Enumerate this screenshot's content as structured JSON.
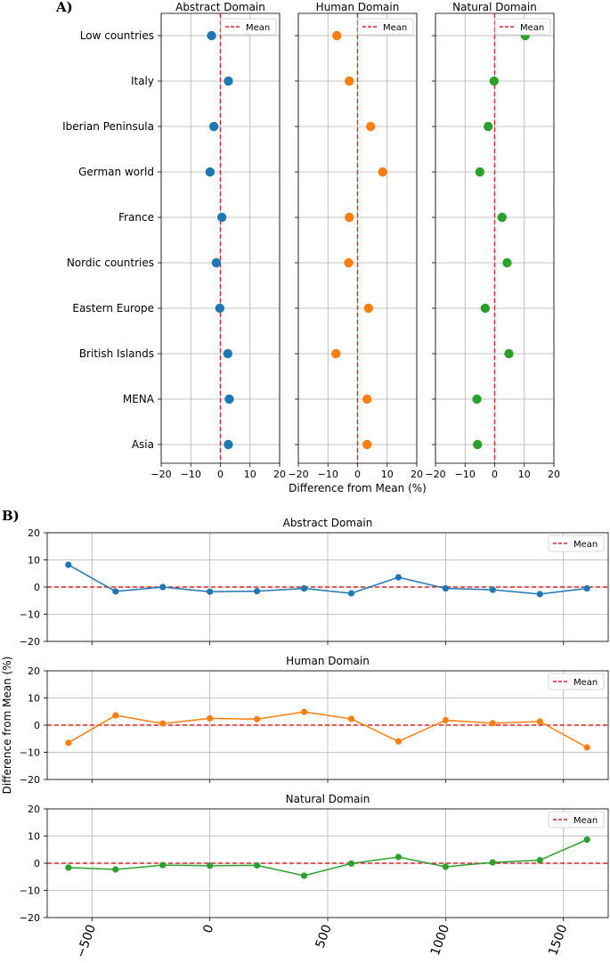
{
  "panel_labels": [
    "A)",
    "B)"
  ],
  "chart_data": [
    {
      "type": "scatter",
      "panel": "A)",
      "title": "Abstract Domain",
      "categories": [
        "Low countries",
        "Italy",
        "Iberian Peninsula",
        "German world",
        "France",
        "Nordic countries",
        "Eastern Europe",
        "British Islands",
        "MENA",
        "Asia"
      ],
      "values": [
        -3.0,
        2.7,
        -2.2,
        -3.5,
        0.5,
        -1.4,
        -0.2,
        2.5,
        3.0,
        2.7
      ],
      "color": "#1f77b4",
      "xlim": [
        -20,
        20
      ],
      "xticks": [
        "−20",
        "−10",
        "0",
        "10",
        "20"
      ],
      "xticks_values": [
        -20,
        -10,
        0,
        10,
        20
      ],
      "xlabel": "",
      "mean_line": 0,
      "legend": "Mean"
    },
    {
      "type": "scatter",
      "panel": "A)",
      "title": "Human Domain",
      "categories": [
        "Low countries",
        "Italy",
        "Iberian Peninsula",
        "German world",
        "France",
        "Nordic countries",
        "Eastern Europe",
        "British Islands",
        "MENA",
        "Asia"
      ],
      "values": [
        -7.0,
        -2.8,
        4.4,
        8.5,
        -2.8,
        -3.0,
        3.7,
        -7.3,
        3.2,
        3.2
      ],
      "color": "#ff7f0e",
      "xlim": [
        -20,
        20
      ],
      "xticks": [
        "−20",
        "−10",
        "0",
        "10",
        "20"
      ],
      "xticks_values": [
        -20,
        -10,
        0,
        10,
        20
      ],
      "xlabel": "Difference from Mean (%)",
      "mean_line": 0,
      "legend": "Mean"
    },
    {
      "type": "scatter",
      "panel": "A)",
      "title": "Natural Domain",
      "categories": [
        "Low countries",
        "Italy",
        "Iberian Peninsula",
        "German world",
        "France",
        "Nordic countries",
        "Eastern Europe",
        "British Islands",
        "MENA",
        "Asia"
      ],
      "values": [
        10.3,
        -0.2,
        -2.2,
        -5.0,
        2.5,
        4.2,
        -3.2,
        4.8,
        -6.0,
        -5.8
      ],
      "color": "#2ca02c",
      "xlim": [
        -20,
        20
      ],
      "xticks": [
        "−20",
        "−10",
        "0",
        "10",
        "20"
      ],
      "xticks_values": [
        -20,
        -10,
        0,
        10,
        20
      ],
      "xlabel": "",
      "mean_line": 0,
      "legend": "Mean"
    },
    {
      "type": "line",
      "panel": "B)",
      "title": "Abstract Domain",
      "x": [
        -600,
        -400,
        -200,
        0,
        200,
        400,
        600,
        800,
        1000,
        1200,
        1400,
        1600
      ],
      "values": [
        8.2,
        -1.6,
        0.0,
        -1.7,
        -1.5,
        -0.5,
        -2.3,
        3.6,
        -0.5,
        -1.0,
        -2.6,
        -0.5
      ],
      "color": "#1f77b4",
      "ylim": [
        -20,
        20
      ],
      "yticks": [
        "20",
        "10",
        "0",
        "−10",
        "−20"
      ],
      "yticks_values": [
        20,
        10,
        0,
        -10,
        -20
      ],
      "mean_line": 0,
      "legend": "Mean"
    },
    {
      "type": "line",
      "panel": "B)",
      "title": "Human Domain",
      "ylabel": "Difference from Mean (%)",
      "x": [
        -600,
        -400,
        -200,
        0,
        200,
        400,
        600,
        800,
        1000,
        1200,
        1400,
        1600
      ],
      "values": [
        -6.5,
        3.6,
        0.6,
        2.5,
        2.2,
        4.9,
        2.3,
        -6.0,
        1.8,
        0.7,
        1.3,
        -8.2
      ],
      "color": "#ff7f0e",
      "ylim": [
        -20,
        20
      ],
      "yticks": [
        "20",
        "10",
        "0",
        "−10",
        "−20"
      ],
      "yticks_values": [
        20,
        10,
        0,
        -10,
        -20
      ],
      "mean_line": 0,
      "legend": "Mean"
    },
    {
      "type": "line",
      "panel": "B)",
      "title": "Natural Domain",
      "x": [
        -600,
        -400,
        -200,
        0,
        200,
        400,
        600,
        800,
        1000,
        1200,
        1400,
        1600
      ],
      "values": [
        -1.6,
        -2.3,
        -0.7,
        -0.9,
        -0.8,
        -4.6,
        -0.1,
        2.3,
        -1.3,
        0.3,
        1.1,
        8.7
      ],
      "color": "#2ca02c",
      "ylim": [
        -20,
        20
      ],
      "yticks": [
        "20",
        "10",
        "0",
        "−10",
        "−20"
      ],
      "yticks_values": [
        20,
        10,
        0,
        -10,
        -20
      ],
      "xticks": [
        "−500",
        "0",
        "500",
        "1000",
        "1500"
      ],
      "xticks_values": [
        -500,
        0,
        500,
        1000,
        1500
      ],
      "mean_line": 0,
      "legend": "Mean"
    }
  ]
}
